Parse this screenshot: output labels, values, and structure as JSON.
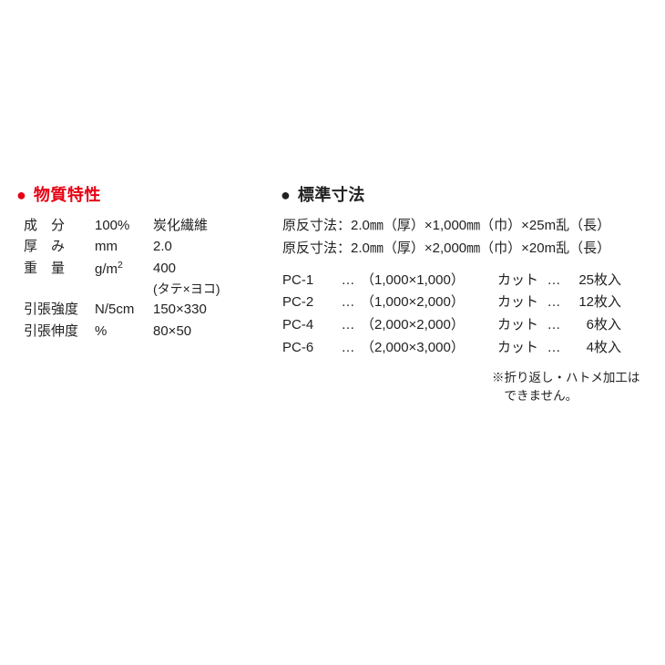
{
  "colors": {
    "accent": "#e60012",
    "text": "#222222",
    "background": "#ffffff"
  },
  "left": {
    "heading": "物質特性",
    "rows": [
      {
        "label": "成　分",
        "unit": "100%",
        "value": "炭化繊維"
      },
      {
        "label": "厚　み",
        "unit": "mm",
        "value": "2.0"
      },
      {
        "label": "重　量",
        "unit": "g/m²",
        "value": "400"
      }
    ],
    "sub_note": "(タテ×ヨコ)",
    "rows2": [
      {
        "label": "引張強度",
        "unit": "N/5cm",
        "value": "150×330"
      },
      {
        "label": "引張伸度",
        "unit": "%",
        "value": "80×50"
      }
    ]
  },
  "right": {
    "heading": "標準寸法",
    "dim_lines": [
      "原反寸法：2.0㎜（厚）×1,000㎜（巾）×25m乱（長）",
      "原反寸法：2.0㎜（厚）×2,000㎜（巾）×20m乱（長）"
    ],
    "pc_rows": [
      {
        "code": "PC-1",
        "size": "（1,000×1,000）",
        "cut": "カット",
        "qty": "25枚入"
      },
      {
        "code": "PC-2",
        "size": "（1,000×2,000）",
        "cut": "カット",
        "qty": "12枚入"
      },
      {
        "code": "PC-4",
        "size": "（2,000×2,000）",
        "cut": "カット",
        "qty": "6枚入"
      },
      {
        "code": "PC-6",
        "size": "（2,000×3,000）",
        "cut": "カット",
        "qty": "4枚入"
      }
    ],
    "pc_dots": "…",
    "footnote_l1": "※折り返し・ハトメ加工は",
    "footnote_l2": "　できません。"
  }
}
